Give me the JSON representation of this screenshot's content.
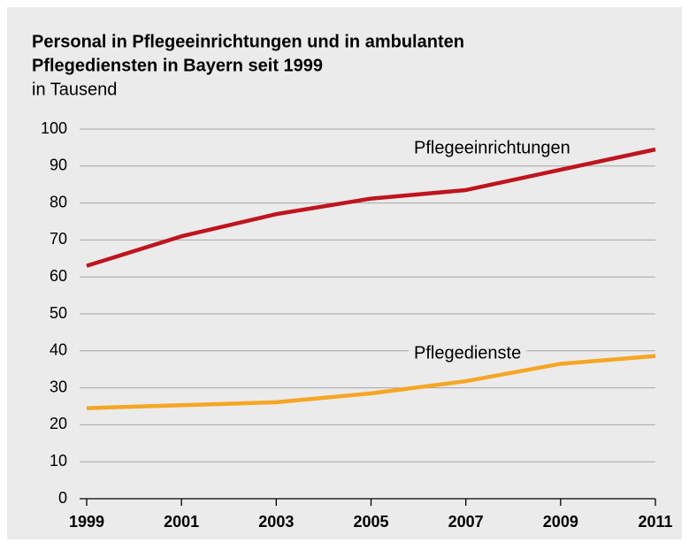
{
  "chart_data": {
    "type": "line",
    "title": "Personal in Pflegeeinrichtungen und in ambulanten Pflegediensten in Bayern seit 1999",
    "subtitle": "in Tausend",
    "x": [
      1999,
      2001,
      2003,
      2005,
      2007,
      2009,
      2011
    ],
    "xlim": [
      1999,
      2011
    ],
    "xticks": [
      1999,
      2001,
      2003,
      2005,
      2007,
      2009,
      2011
    ],
    "ylim": [
      0,
      100
    ],
    "yticks": [
      0,
      10,
      20,
      30,
      40,
      50,
      60,
      70,
      80,
      90,
      100
    ],
    "grid": true,
    "series": [
      {
        "name": "Pflegeeinrichtungen",
        "color": "#c0141e",
        "values": [
          63,
          71,
          77,
          81.2,
          83.5,
          89,
          94.5
        ]
      },
      {
        "name": "Pflegedienste",
        "color": "#f5a623",
        "values": [
          24.5,
          25.3,
          26.1,
          28.5,
          31.8,
          36.5,
          38.6
        ]
      }
    ]
  }
}
